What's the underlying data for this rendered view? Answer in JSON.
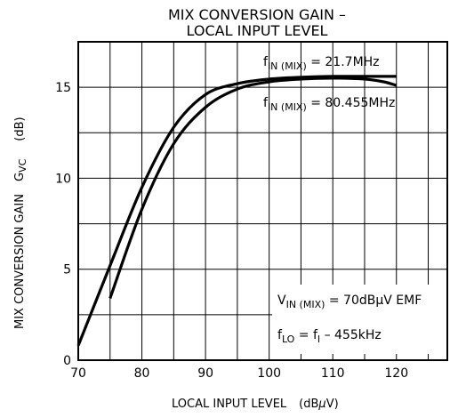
{
  "chart_data": {
    "type": "line",
    "title_line1": "MIX CONVERSION GAIN –",
    "title_line2": "LOCAL INPUT LEVEL",
    "xlabel": {
      "text": "LOCAL INPUT LEVEL",
      "unit": "(dB",
      "unit_symbol": "μ",
      "unit_end": "V)"
    },
    "ylabel": {
      "text": "MIX CONVERSION GAIN",
      "symbol": "G",
      "symbol_sub": "VC",
      "unit": "(dB)"
    },
    "xlim": [
      70,
      128
    ],
    "ylim": [
      0,
      17.5
    ],
    "x_ticks": [
      70,
      80,
      90,
      100,
      110,
      120
    ],
    "y_ticks": [
      0,
      5,
      10,
      15
    ],
    "grid": true,
    "series": [
      {
        "name": "fIN (MIX) = 21.7MHz",
        "x": [
          70,
          75,
          80,
          85,
          90,
          95,
          100,
          105,
          110,
          115,
          120
        ],
        "y": [
          0.8,
          5.2,
          9.5,
          12.8,
          14.6,
          15.2,
          15.45,
          15.55,
          15.6,
          15.6,
          15.6
        ]
      },
      {
        "name": "fIN (MIX) = 80.455MHz",
        "x": [
          75,
          80,
          85,
          90,
          95,
          100,
          105,
          110,
          115,
          118,
          120
        ],
        "y": [
          3.4,
          8.3,
          11.9,
          13.9,
          14.9,
          15.3,
          15.45,
          15.5,
          15.45,
          15.3,
          15.1
        ]
      }
    ]
  },
  "annotations": {
    "series1": {
      "f": "f",
      "sub": "IN (MIX)",
      "rest": " = 21.7MHz"
    },
    "series2": {
      "f": "f",
      "sub": "IN (MIX)",
      "rest": " = 80.455MHz"
    },
    "cond1": {
      "v": "V",
      "sub": "IN (MIX)",
      "rest_a": " = 70dB",
      "mu": "μ",
      "rest_b": "V  EMF"
    },
    "cond2": {
      "f": "f",
      "sub": "LO",
      "rest": " = f",
      "sub2": "I",
      "rest2": " – 455kHz"
    }
  }
}
